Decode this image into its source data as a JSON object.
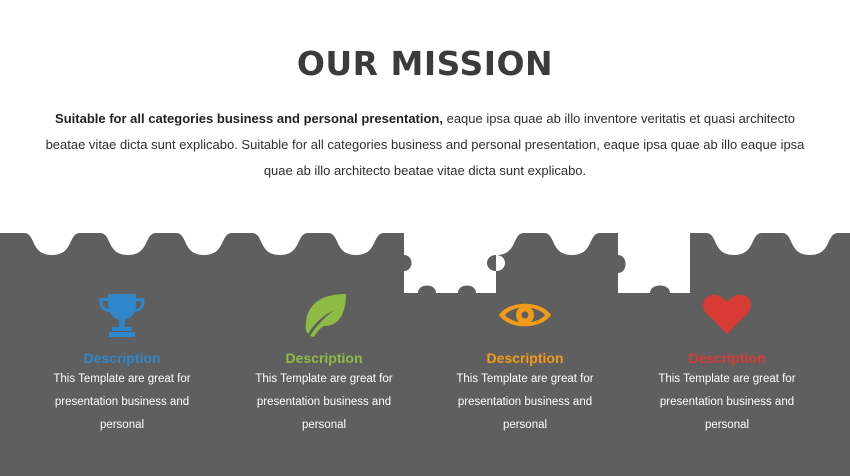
{
  "slide": {
    "title": "OUR MISSION",
    "intro_bold": "Suitable for all categories business and personal presentation,",
    "intro_rest": " eaque ipsa quae ab illo inventore veritatis et quasi architecto beatae vitae dicta sunt explicabo. Suitable for all categories business and personal presentation, eaque ipsa quae ab illo eaque ipsa quae ab illo architecto beatae vitae dicta sunt explicabo."
  },
  "colors": {
    "band": "#5f5f5f",
    "blue": "#2f86c9",
    "green": "#8dbb44",
    "orange": "#f29b1a",
    "red": "#d83a34"
  },
  "features": [
    {
      "icon": "trophy-icon",
      "title": "Description",
      "text": "This Template are great for presentation business and personal"
    },
    {
      "icon": "leaf-icon",
      "title": "Description",
      "text": "This Template are great for presentation business and personal"
    },
    {
      "icon": "eye-icon",
      "title": "Description",
      "text": "This Template are great for presentation business and personal"
    },
    {
      "icon": "heart-icon",
      "title": "Description",
      "text": "This Template are great for presentation business and personal"
    }
  ]
}
